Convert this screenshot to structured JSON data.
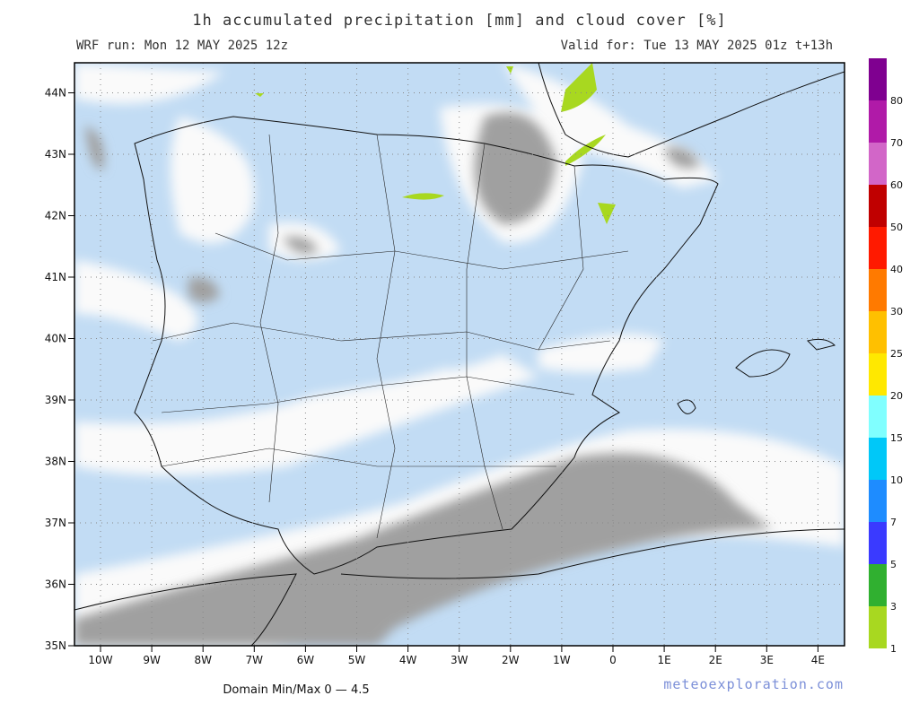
{
  "header": {
    "title": "1h accumulated precipitation [mm] and cloud cover [%]",
    "run": "WRF run: Mon 12 MAY 2025 12z",
    "valid": "Valid for: Tue 13 MAY 2025 01z  t+13h"
  },
  "map": {
    "lat_labels": [
      "44N",
      "43N",
      "42N",
      "41N",
      "40N",
      "39N",
      "38N",
      "37N",
      "36N",
      "35N"
    ],
    "lon_labels": [
      "10W",
      "9W",
      "8W",
      "7W",
      "6W",
      "5W",
      "4W",
      "3W",
      "2W",
      "1W",
      "0",
      "1E",
      "2E",
      "3E",
      "4E"
    ]
  },
  "colorbar": {
    "labels": [
      "80",
      "70",
      "60",
      "50",
      "40",
      "30",
      "25",
      "20",
      "15",
      "10",
      "7",
      "5",
      "3",
      "1"
    ],
    "colors": [
      "#7f0090",
      "#b01aa8",
      "#d266c8",
      "#c00000",
      "#ff1a00",
      "#ff7a00",
      "#ffc000",
      "#ffe800",
      "#80ffff",
      "#00c8f8",
      "#1e8cff",
      "#3a3aff",
      "#30b030",
      "#a8d820"
    ]
  },
  "footer": {
    "domain": "Domain Min/Max 0 — 4.5",
    "site": "meteoexploration.com"
  }
}
